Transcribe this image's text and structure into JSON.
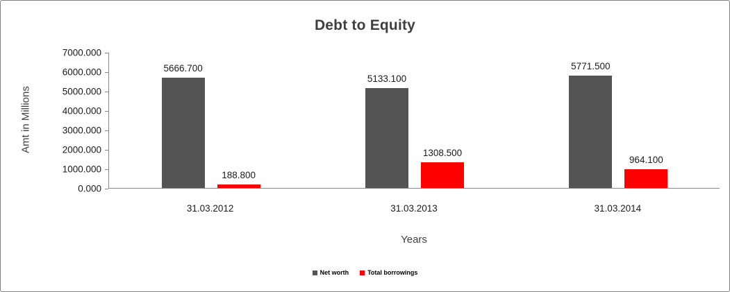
{
  "chart_data": {
    "type": "bar",
    "title": "Debt to Equity",
    "xlabel": "Years",
    "ylabel": "Amt in Millions",
    "categories": [
      "31.03.2012",
      "31.03.2013",
      "31.03.2014"
    ],
    "series": [
      {
        "name": "Net worth",
        "color": "#545454",
        "values": [
          5666.7,
          5133.1,
          5771.5
        ],
        "labels": [
          "5666.700",
          "5133.100",
          "5771.500"
        ]
      },
      {
        "name": "Total borrowings",
        "color": "#fe0000",
        "values": [
          188.8,
          1308.5,
          964.1
        ],
        "labels": [
          "188.800",
          "1308.500",
          "964.100"
        ]
      }
    ],
    "ylim": [
      0,
      7000
    ],
    "ytick_step": 1000,
    "ytick_labels": [
      "0.000",
      "1000.000",
      "2000.000",
      "3000.000",
      "4000.000",
      "5000.000",
      "6000.000",
      "7000.000"
    ],
    "grid": false,
    "legend_position": "bottom"
  }
}
